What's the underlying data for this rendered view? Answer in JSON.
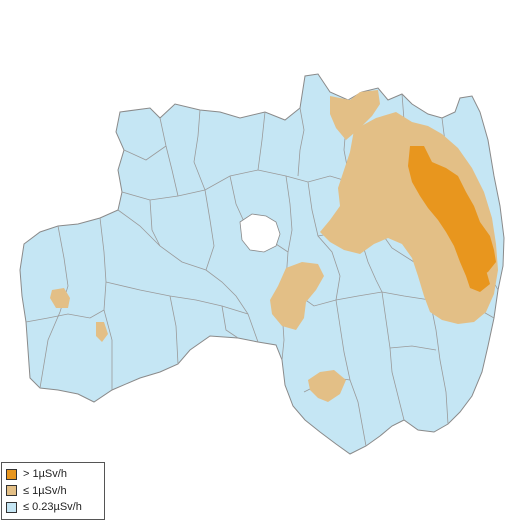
{
  "colors": {
    "high": "#e8961e",
    "mid": "#e3bf86",
    "low": "#c5e6f4",
    "border": "#9a9a9a",
    "outline": "#8a8a8a"
  },
  "legend": {
    "items": [
      {
        "label": "> 1µSv/h",
        "color": "#e8961e",
        "level": "high"
      },
      {
        "label": "≤ 1µSv/h",
        "color": "#e3bf86",
        "level": "mid"
      },
      {
        "label": "≤ 0.23µSv/h",
        "color": "#c5e6f4",
        "level": "low"
      }
    ]
  }
}
